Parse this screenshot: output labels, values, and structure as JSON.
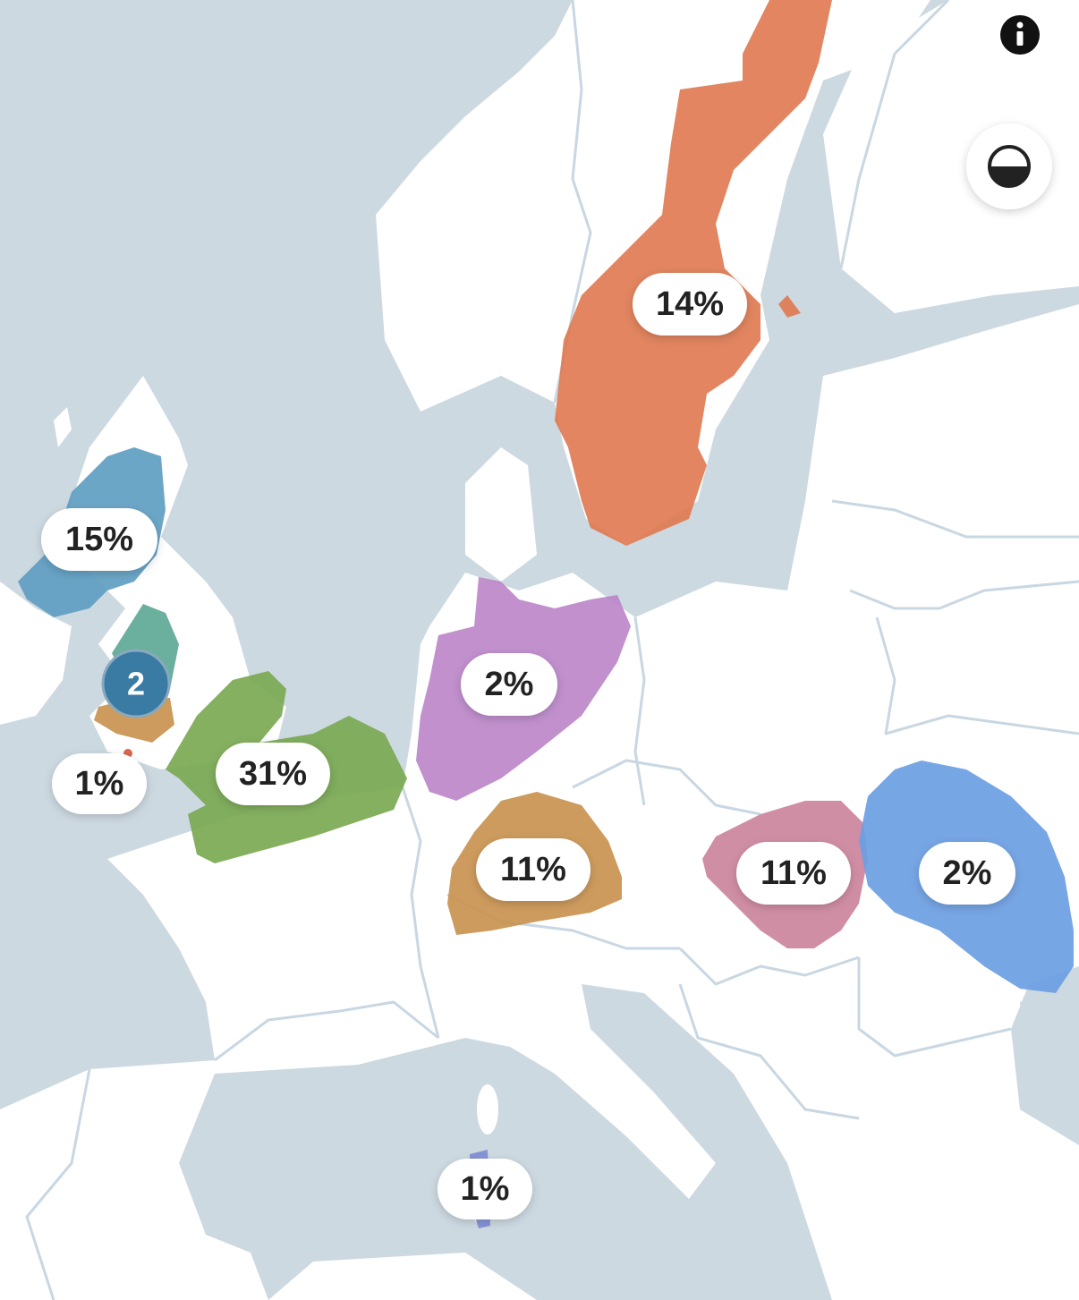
{
  "map": {
    "regions": [
      {
        "label": "14%"
      },
      {
        "label": "15%"
      },
      {
        "label": "1%"
      },
      {
        "label": "31%"
      },
      {
        "label": "2%"
      },
      {
        "label": "11%"
      },
      {
        "label": "11%"
      },
      {
        "label": "2%"
      },
      {
        "label": "1%"
      }
    ],
    "cluster": {
      "label": "2"
    }
  }
}
